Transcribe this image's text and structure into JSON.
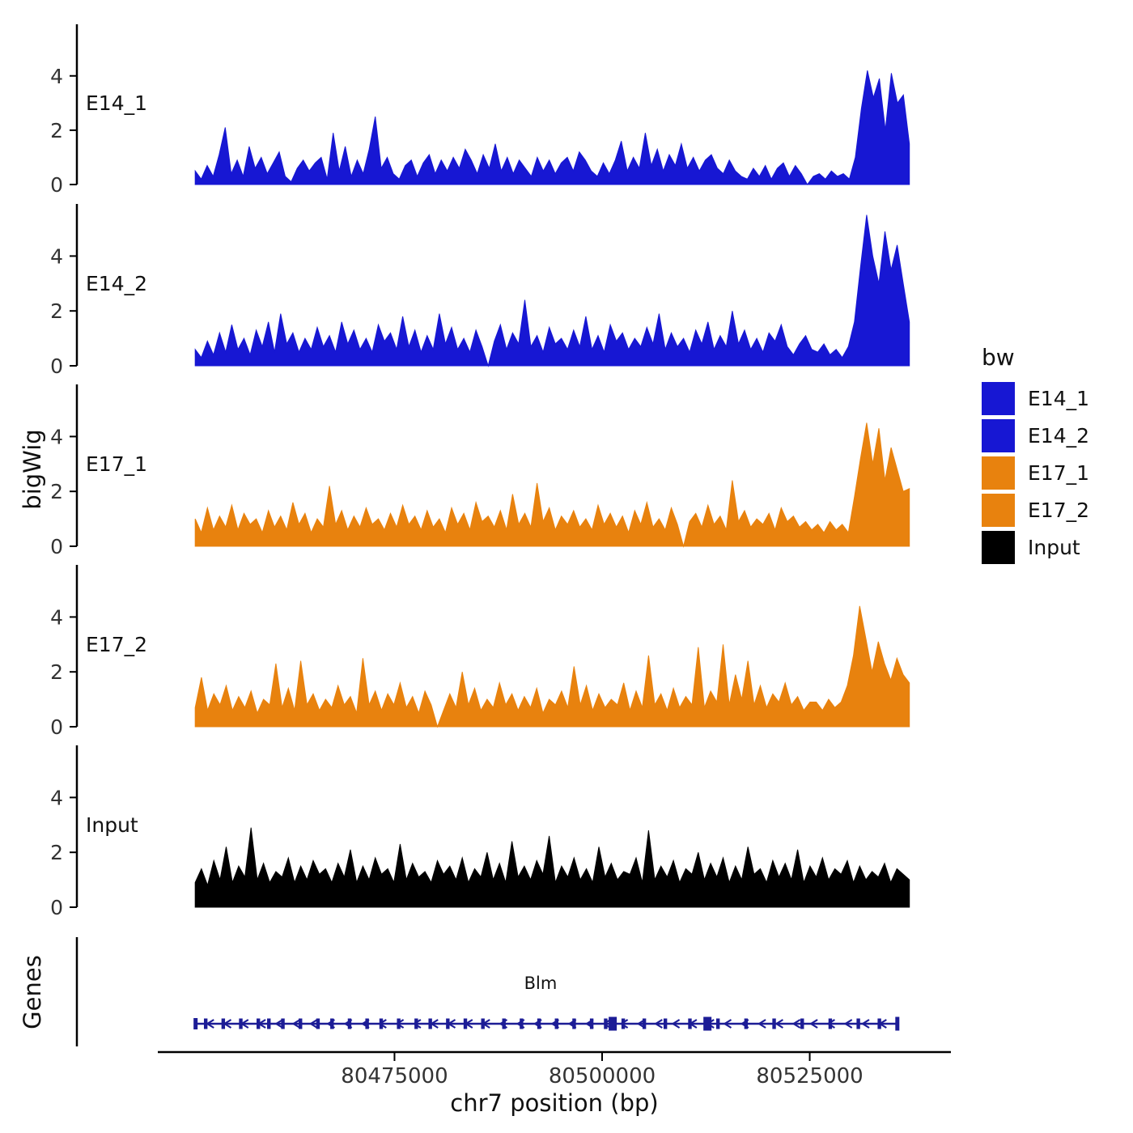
{
  "labels": {
    "y_axis_bigwig": "bigWig",
    "y_axis_genes": "Genes"
  },
  "legend": {
    "title": "bw"
  },
  "x_axis": {
    "title": "chr7 position (bp)",
    "ticks": [
      {
        "bp": 80475000,
        "label": "80475000"
      },
      {
        "bp": 80500000,
        "label": "80500000"
      },
      {
        "bp": 80525000,
        "label": "80525000"
      }
    ]
  },
  "chart_data": {
    "type": "area",
    "title": "",
    "xlabel": "chr7 position (bp)",
    "ylabel": "bigWig",
    "x_bp_range": [
      80446500,
      80542000
    ],
    "signal_bp_range": [
      80451000,
      80537000
    ],
    "y_ticks": [
      0,
      2,
      4
    ],
    "ylim": [
      0,
      5.9
    ],
    "legend_title": "bw",
    "tracks": [
      {
        "label": "E14_1",
        "color": "#1717d3",
        "values": [
          0.5,
          0.2,
          0.7,
          0.3,
          1.1,
          2.1,
          0.4,
          0.9,
          0.3,
          1.4,
          0.6,
          1.0,
          0.4,
          0.8,
          1.2,
          0.3,
          0.1,
          0.6,
          0.9,
          0.5,
          0.8,
          1.0,
          0.2,
          1.9,
          0.5,
          1.4,
          0.3,
          0.9,
          0.4,
          1.3,
          2.5,
          0.6,
          1.0,
          0.4,
          0.2,
          0.7,
          0.9,
          0.3,
          0.8,
          1.1,
          0.4,
          0.9,
          0.5,
          1.0,
          0.6,
          1.3,
          0.9,
          0.4,
          1.1,
          0.6,
          1.5,
          0.5,
          1.0,
          0.4,
          0.9,
          0.6,
          0.3,
          1.0,
          0.5,
          0.9,
          0.4,
          0.8,
          1.0,
          0.5,
          1.2,
          0.9,
          0.5,
          0.3,
          0.8,
          0.4,
          0.9,
          1.6,
          0.5,
          1.0,
          0.6,
          1.9,
          0.7,
          1.3,
          0.5,
          1.1,
          0.7,
          1.5,
          0.6,
          1.0,
          0.5,
          0.9,
          1.1,
          0.6,
          0.4,
          0.9,
          0.5,
          0.3,
          0.2,
          0.6,
          0.3,
          0.7,
          0.2,
          0.6,
          0.8,
          0.3,
          0.7,
          0.4,
          0.0,
          0.3,
          0.4,
          0.2,
          0.5,
          0.3,
          0.4,
          0.2,
          1.0,
          2.8,
          4.2,
          3.2,
          3.9,
          2.0,
          4.1,
          3.0,
          3.3,
          1.5
        ]
      },
      {
        "label": "E14_2",
        "color": "#1717d3",
        "values": [
          0.6,
          0.3,
          0.9,
          0.4,
          1.2,
          0.5,
          1.5,
          0.6,
          1.0,
          0.4,
          1.3,
          0.7,
          1.6,
          0.5,
          1.9,
          0.8,
          1.2,
          0.5,
          1.0,
          0.6,
          1.4,
          0.7,
          1.1,
          0.5,
          1.6,
          0.8,
          1.3,
          0.6,
          1.0,
          0.5,
          1.5,
          0.9,
          1.2,
          0.6,
          1.8,
          0.7,
          1.3,
          0.5,
          1.1,
          0.6,
          1.9,
          0.8,
          1.4,
          0.6,
          1.0,
          0.5,
          1.3,
          0.7,
          0.0,
          0.9,
          1.5,
          0.6,
          1.2,
          0.8,
          2.4,
          0.7,
          1.1,
          0.5,
          1.4,
          0.8,
          1.0,
          0.6,
          1.3,
          0.7,
          1.8,
          0.6,
          1.1,
          0.5,
          1.5,
          0.9,
          1.2,
          0.6,
          1.0,
          0.7,
          1.4,
          0.8,
          1.9,
          0.6,
          1.2,
          0.7,
          1.0,
          0.5,
          1.3,
          0.8,
          1.6,
          0.6,
          1.1,
          0.7,
          2.0,
          0.8,
          1.3,
          0.6,
          1.0,
          0.5,
          1.2,
          0.9,
          1.5,
          0.7,
          0.4,
          0.8,
          1.1,
          0.6,
          0.5,
          0.8,
          0.4,
          0.6,
          0.3,
          0.7,
          1.6,
          3.6,
          5.5,
          4.0,
          3.0,
          4.9,
          3.5,
          4.4,
          3.0,
          1.6
        ]
      },
      {
        "label": "E17_1",
        "color": "#e8820e",
        "values": [
          1.0,
          0.5,
          1.4,
          0.6,
          1.1,
          0.7,
          1.5,
          0.6,
          1.2,
          0.8,
          1.0,
          0.5,
          1.3,
          0.7,
          1.1,
          0.6,
          1.6,
          0.8,
          1.2,
          0.5,
          1.0,
          0.7,
          2.2,
          0.8,
          1.3,
          0.6,
          1.1,
          0.7,
          1.4,
          0.8,
          1.0,
          0.6,
          1.2,
          0.7,
          1.5,
          0.8,
          1.1,
          0.6,
          1.3,
          0.7,
          1.0,
          0.5,
          1.4,
          0.8,
          1.2,
          0.6,
          1.6,
          0.9,
          1.1,
          0.7,
          1.3,
          0.6,
          1.9,
          0.8,
          1.2,
          0.7,
          2.3,
          0.9,
          1.4,
          0.6,
          1.1,
          0.8,
          1.3,
          0.7,
          1.0,
          0.6,
          1.5,
          0.8,
          1.2,
          0.7,
          1.1,
          0.5,
          1.3,
          0.8,
          1.6,
          0.7,
          1.0,
          0.6,
          1.4,
          0.8,
          0.0,
          0.9,
          1.2,
          0.7,
          1.5,
          0.8,
          1.1,
          0.6,
          2.4,
          0.9,
          1.3,
          0.7,
          1.0,
          0.8,
          1.2,
          0.6,
          1.4,
          0.9,
          1.1,
          0.7,
          0.9,
          0.6,
          0.8,
          0.5,
          0.9,
          0.6,
          0.8,
          0.5,
          1.8,
          3.2,
          4.5,
          3.0,
          4.3,
          2.4,
          3.6,
          2.8,
          2.0,
          2.1
        ]
      },
      {
        "label": "E17_2",
        "color": "#e8820e",
        "values": [
          0.7,
          1.8,
          0.6,
          1.2,
          0.8,
          1.5,
          0.6,
          1.1,
          0.7,
          1.3,
          0.5,
          1.0,
          0.8,
          2.3,
          0.7,
          1.4,
          0.6,
          2.4,
          0.8,
          1.2,
          0.6,
          1.0,
          0.7,
          1.5,
          0.8,
          1.1,
          0.5,
          2.5,
          0.8,
          1.3,
          0.6,
          1.2,
          0.8,
          1.6,
          0.7,
          1.1,
          0.5,
          1.3,
          0.8,
          0.0,
          0.6,
          1.2,
          0.7,
          2.0,
          0.8,
          1.4,
          0.6,
          1.0,
          0.7,
          1.6,
          0.8,
          1.2,
          0.6,
          1.1,
          0.7,
          1.4,
          0.5,
          1.0,
          0.8,
          1.3,
          0.7,
          2.2,
          0.8,
          1.5,
          0.6,
          1.2,
          0.7,
          1.0,
          0.8,
          1.6,
          0.6,
          1.3,
          0.7,
          2.6,
          0.8,
          1.2,
          0.6,
          1.4,
          0.7,
          1.1,
          0.8,
          2.9,
          0.7,
          1.3,
          0.9,
          3.0,
          0.8,
          1.9,
          1.0,
          2.4,
          0.8,
          1.5,
          0.7,
          1.2,
          0.9,
          1.6,
          0.8,
          1.1,
          0.6,
          0.9,
          0.9,
          0.6,
          1.0,
          0.7,
          0.9,
          1.5,
          2.6,
          4.4,
          3.2,
          2.0,
          3.1,
          2.3,
          1.7,
          2.5,
          1.9,
          1.6
        ]
      },
      {
        "label": "Input",
        "color": "#000000",
        "values": [
          0.9,
          1.4,
          0.8,
          1.7,
          1.0,
          2.2,
          0.9,
          1.5,
          1.1,
          2.9,
          1.0,
          1.6,
          0.9,
          1.3,
          1.1,
          1.8,
          0.9,
          1.5,
          1.0,
          1.7,
          1.2,
          1.4,
          0.9,
          1.6,
          1.1,
          2.1,
          0.9,
          1.5,
          1.0,
          1.8,
          1.2,
          1.4,
          0.9,
          2.3,
          1.0,
          1.6,
          1.1,
          1.3,
          0.9,
          1.7,
          1.2,
          1.5,
          1.0,
          1.8,
          0.9,
          1.4,
          1.1,
          2.0,
          1.0,
          1.6,
          0.9,
          2.4,
          1.1,
          1.5,
          1.0,
          1.7,
          1.2,
          2.6,
          0.9,
          1.5,
          1.1,
          1.8,
          1.0,
          1.4,
          0.9,
          2.2,
          1.1,
          1.6,
          1.0,
          1.3,
          1.2,
          1.8,
          0.9,
          2.8,
          1.0,
          1.5,
          1.1,
          1.7,
          0.9,
          1.4,
          1.2,
          2.0,
          1.0,
          1.6,
          1.1,
          1.8,
          0.9,
          1.5,
          1.0,
          2.2,
          1.2,
          1.4,
          0.9,
          1.7,
          1.1,
          1.6,
          1.0,
          2.1,
          0.9,
          1.5,
          1.1,
          1.8,
          1.0,
          1.4,
          1.2,
          1.7,
          0.9,
          1.5,
          1.0,
          1.3,
          1.1,
          1.6,
          0.9,
          1.4,
          1.2,
          1.0
        ]
      }
    ],
    "gene_track": {
      "axis_label": "Genes",
      "gene": {
        "name": "Blm",
        "strand": "-",
        "start_bp": 80451000,
        "end_bp": 80535500,
        "color": "#1c1c96",
        "arrow_count": 40,
        "exon_fracs": [
          0.015,
          0.04,
          0.065,
          0.09,
          0.105,
          0.125,
          0.15,
          0.175,
          0.195,
          0.22,
          0.245,
          0.265,
          0.29,
          0.315,
          0.335,
          0.36,
          0.385,
          0.41,
          0.44,
          0.465,
          0.49,
          0.515,
          0.54,
          0.565,
          0.585,
          0.61,
          0.64,
          0.67,
          0.705,
          0.745,
          0.785,
          0.825,
          0.865,
          0.905,
          0.945,
          0.975
        ],
        "large_exon_fracs": [
          0.595,
          0.73
        ]
      }
    }
  }
}
